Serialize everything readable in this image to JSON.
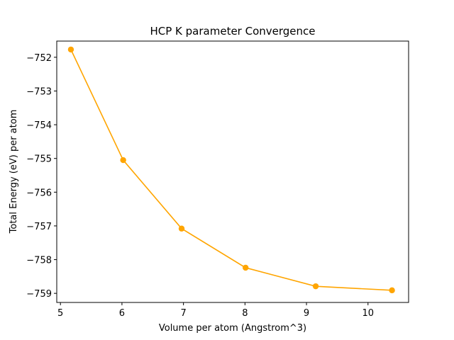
{
  "chart_data": {
    "type": "line",
    "title": "HCP K parameter Convergence",
    "xlabel": "Volume per atom (Angstrom^3)",
    "ylabel": "Total Energy (eV) per atom",
    "xlim": [
      4.94,
      10.66
    ],
    "ylim": [
      -759.27,
      -751.52
    ],
    "xticks": [
      5,
      6,
      7,
      8,
      9,
      10
    ],
    "xtick_labels": [
      "5",
      "6",
      "7",
      "8",
      "9",
      "10"
    ],
    "yticks": [
      -759,
      -758,
      -757,
      -756,
      -755,
      -754,
      -753,
      -752
    ],
    "ytick_labels": [
      "−759",
      "−758",
      "−757",
      "−756",
      "−755",
      "−754",
      "−753",
      "−752"
    ],
    "grid": false,
    "series": [
      {
        "name": "Total Energy",
        "color": "#FFA500",
        "marker": "circle",
        "x": [
          5.17,
          6.02,
          6.97,
          8.01,
          9.15,
          10.39
        ],
        "y": [
          -751.77,
          -755.05,
          -757.08,
          -758.24,
          -758.79,
          -758.91
        ]
      }
    ]
  }
}
